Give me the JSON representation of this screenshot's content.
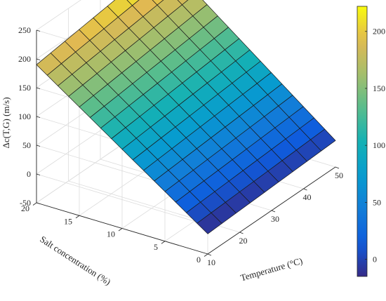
{
  "chart_data": {
    "type": "surface",
    "title": "",
    "zlabel": "Δc(T,G) (m/s)",
    "xlabel": "Temperature (°C)",
    "ylabel": "Salt concentration (%)",
    "x_range": [
      10,
      50
    ],
    "y_range": [
      0,
      20
    ],
    "z_range": [
      -50,
      250
    ],
    "x_ticks": [
      "10",
      "20",
      "30",
      "40",
      "50"
    ],
    "y_ticks": [
      "0",
      "5",
      "10",
      "15",
      "20"
    ],
    "z_ticks": [
      "-50",
      "0",
      "50",
      "100",
      "150",
      "200",
      "250"
    ],
    "grid": true,
    "colormap": "parula",
    "colorbar": {
      "range": [
        -15,
        222
      ],
      "ticks": [
        "0",
        "50",
        "100",
        "150",
        "200"
      ]
    },
    "x_grid_count": 9,
    "y_grid_count": 16,
    "corner_values": {
      "x10_y0": -15,
      "x50_y0": -4,
      "x10_y20": 190,
      "x50_y20": 222
    }
  }
}
